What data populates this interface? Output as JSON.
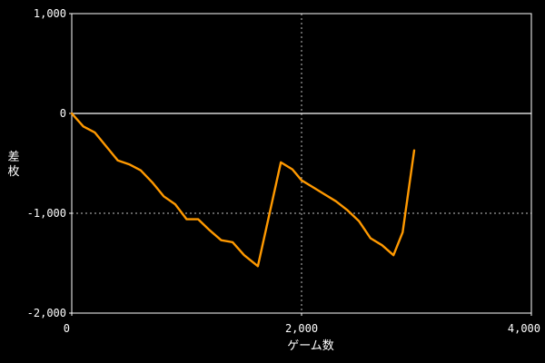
{
  "chart_data": {
    "type": "line",
    "xlabel": "ゲーム数",
    "ylabel": "差枚",
    "xlim": [
      0,
      4000
    ],
    "ylim": [
      -2000,
      1000
    ],
    "x_ticks": [
      {
        "value": 0,
        "label": "0"
      },
      {
        "value": 2000,
        "label": "2,000"
      },
      {
        "value": 4000,
        "label": "4,000"
      }
    ],
    "y_ticks": [
      {
        "value": 1000,
        "label": "1,000"
      },
      {
        "value": 0,
        "label": "0"
      },
      {
        "value": -1000,
        "label": "-1,000"
      },
      {
        "value": -2000,
        "label": "-2,000"
      }
    ],
    "grid": true,
    "zero_line": true,
    "line_color": "#ff9900",
    "series": [
      {
        "points": [
          [
            0,
            0
          ],
          [
            100,
            -130
          ],
          [
            200,
            -190
          ],
          [
            300,
            -330
          ],
          [
            400,
            -470
          ],
          [
            500,
            -510
          ],
          [
            600,
            -570
          ],
          [
            700,
            -690
          ],
          [
            800,
            -830
          ],
          [
            900,
            -910
          ],
          [
            1000,
            -1060
          ],
          [
            1100,
            -1060
          ],
          [
            1200,
            -1170
          ],
          [
            1300,
            -1270
          ],
          [
            1400,
            -1290
          ],
          [
            1500,
            -1420
          ],
          [
            1620,
            -1530
          ],
          [
            1820,
            -490
          ],
          [
            1920,
            -560
          ],
          [
            2000,
            -670
          ],
          [
            2100,
            -740
          ],
          [
            2200,
            -810
          ],
          [
            2300,
            -880
          ],
          [
            2400,
            -970
          ],
          [
            2500,
            -1080
          ],
          [
            2600,
            -1250
          ],
          [
            2700,
            -1320
          ],
          [
            2800,
            -1420
          ],
          [
            2880,
            -1190
          ],
          [
            2980,
            -370
          ]
        ]
      }
    ]
  }
}
